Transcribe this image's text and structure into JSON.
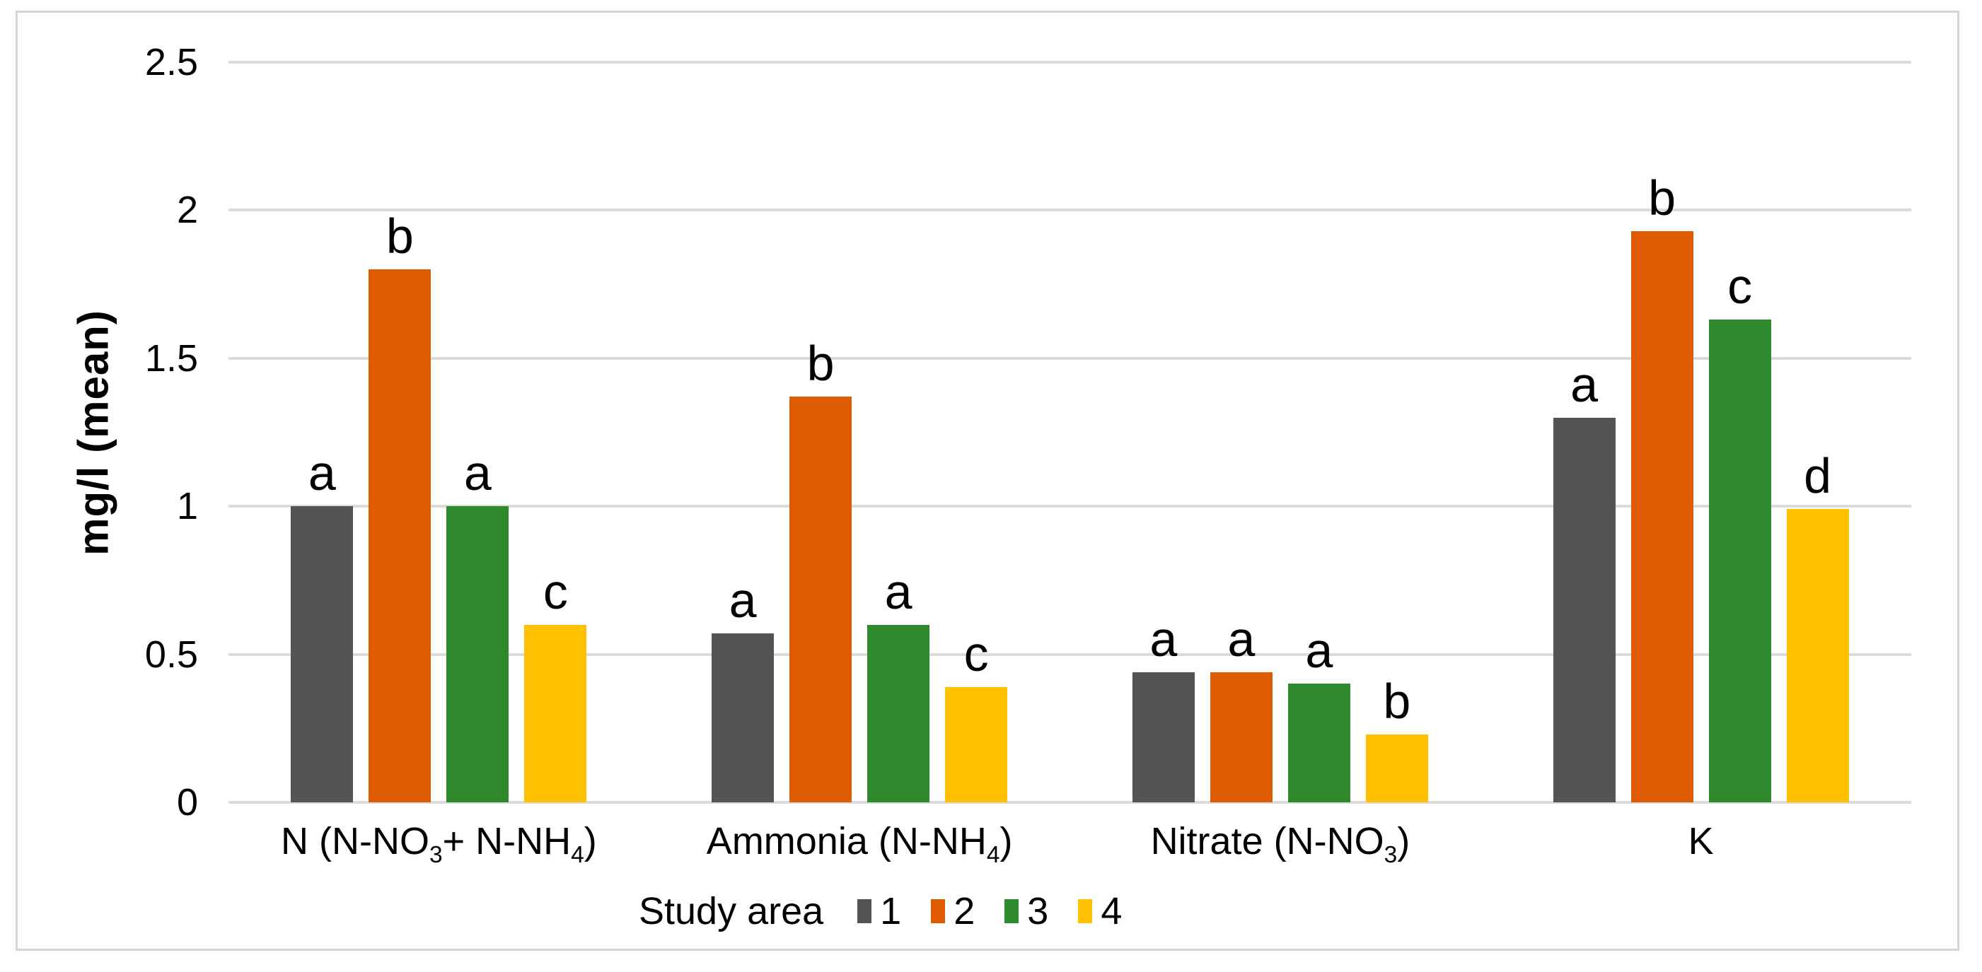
{
  "chart_data": {
    "type": "bar",
    "title": "",
    "ylabel": "mg/l  (mean)",
    "xlabel": "",
    "ylim": [
      0,
      2.5
    ],
    "ytick_step": 0.5,
    "yticks": [
      "2.5",
      "2",
      "1.5",
      "1",
      "0.5",
      "0"
    ],
    "grid": "horizontal",
    "gridline_color": "#dbdbdb",
    "frame_color": "#d5d5d5",
    "categories": [
      "N (N-NO3+ N-NH4)",
      "Ammonia (N-NH4)",
      "Nitrate (N-NO3)",
      "K"
    ],
    "categories_rich": [
      [
        {
          "text": "N (N-NO"
        },
        {
          "text": "3",
          "sub": true
        },
        {
          "text": "+ N-NH"
        },
        {
          "text": "4",
          "sub": true
        },
        {
          "text": ")"
        }
      ],
      [
        {
          "text": "Ammonia (N-NH"
        },
        {
          "text": "4",
          "sub": true
        },
        {
          "text": ")"
        }
      ],
      [
        {
          "text": "Nitrate (N-NO"
        },
        {
          "text": "3",
          "sub": true
        },
        {
          "text": ")"
        }
      ],
      [
        {
          "text": "K"
        }
      ]
    ],
    "series": [
      {
        "name": "1",
        "color": "#545454",
        "values": [
          1.0,
          0.57,
          0.44,
          1.3
        ],
        "letters": [
          "a",
          "a",
          "a",
          "a"
        ]
      },
      {
        "name": "2",
        "color": "#de5b02",
        "values": [
          1.8,
          1.37,
          0.44,
          1.93
        ],
        "letters": [
          "b",
          "b",
          "a",
          "b"
        ]
      },
      {
        "name": "3",
        "color": "#2f8a2e",
        "values": [
          1.0,
          0.6,
          0.4,
          1.63
        ],
        "letters": [
          "a",
          "a",
          "a",
          "c"
        ]
      },
      {
        "name": "4",
        "color": "#ffc000",
        "values": [
          0.6,
          0.39,
          0.23,
          0.99
        ],
        "letters": [
          "c",
          "c",
          "b",
          "d"
        ]
      }
    ],
    "legend": {
      "title": "Study area",
      "position": "bottom"
    }
  }
}
